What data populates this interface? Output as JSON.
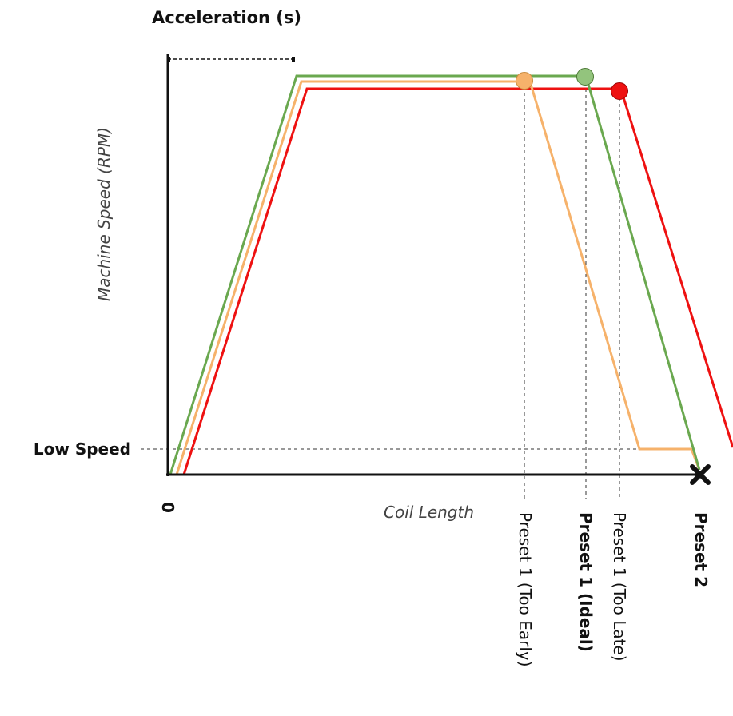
{
  "labels": {
    "acceleration": "Acceleration (s)",
    "y_axis": "Machine Speed (RPM)",
    "low_speed": "Low Speed",
    "origin": "0",
    "x_axis": "Coil Length",
    "preset_early": "Preset 1 (Too Early)",
    "preset_ideal": "Preset 1 (Ideal)",
    "preset_late": "Preset 1 (Too Late)",
    "preset_2": "Preset 2"
  },
  "colors": {
    "green": "#6aa84f",
    "orange": "#f6b26b",
    "red": "#ee1111",
    "axis": "#111111",
    "guide": "#333333"
  },
  "icons": {
    "preset_2_marker": "x-mark-icon"
  }
}
